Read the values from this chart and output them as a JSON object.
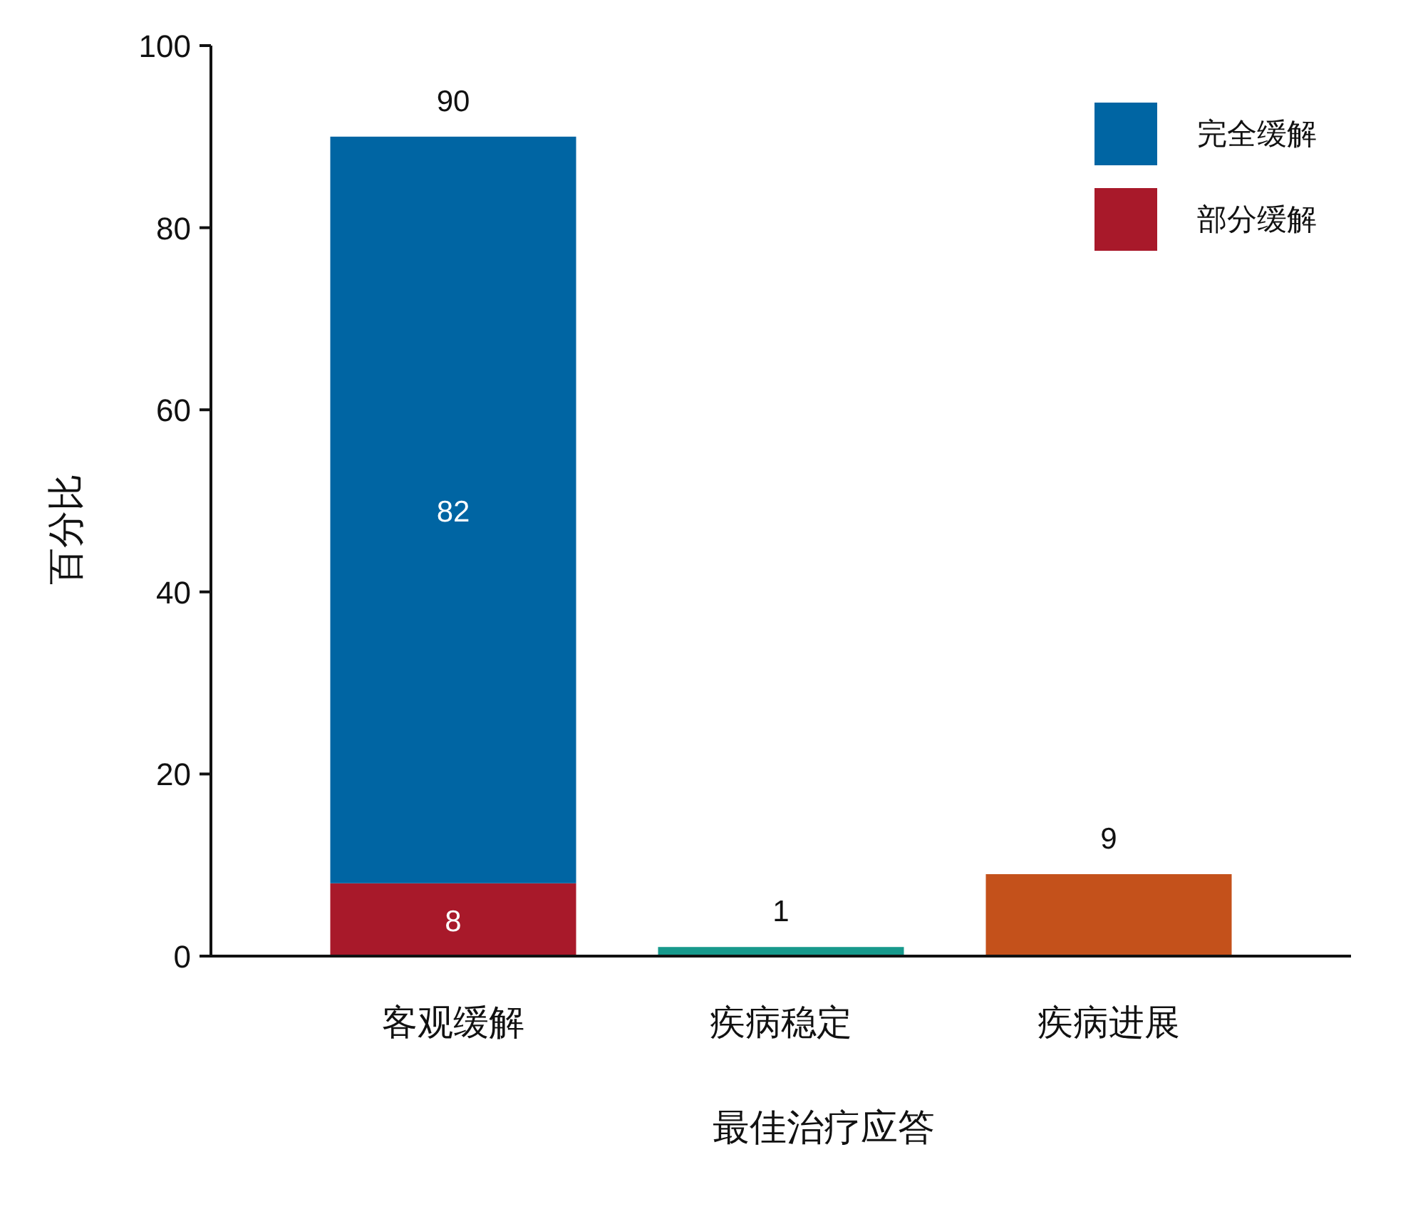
{
  "chart_data": {
    "type": "bar",
    "stacked": true,
    "xlabel": "最佳治疗应答",
    "ylabel": "百分比",
    "categories": [
      "客观缓解",
      "疾病稳定",
      "疾病进展"
    ],
    "series": [
      {
        "name": "部分缓解",
        "color": "#a8192a",
        "values": [
          8,
          null,
          null
        ]
      },
      {
        "name": "完全缓解",
        "color": "#0065a3",
        "values": [
          82,
          null,
          null
        ]
      },
      {
        "colors": [
          null,
          "#17998c",
          "#c4511b"
        ],
        "values": [
          null,
          1,
          9
        ]
      }
    ],
    "data_labels": true,
    "totals": [
      "90",
      null,
      null
    ],
    "ylim": [
      0,
      100
    ],
    "yticks": [
      0,
      20,
      40,
      60,
      80,
      100
    ],
    "grid": false,
    "legend": "top right"
  }
}
